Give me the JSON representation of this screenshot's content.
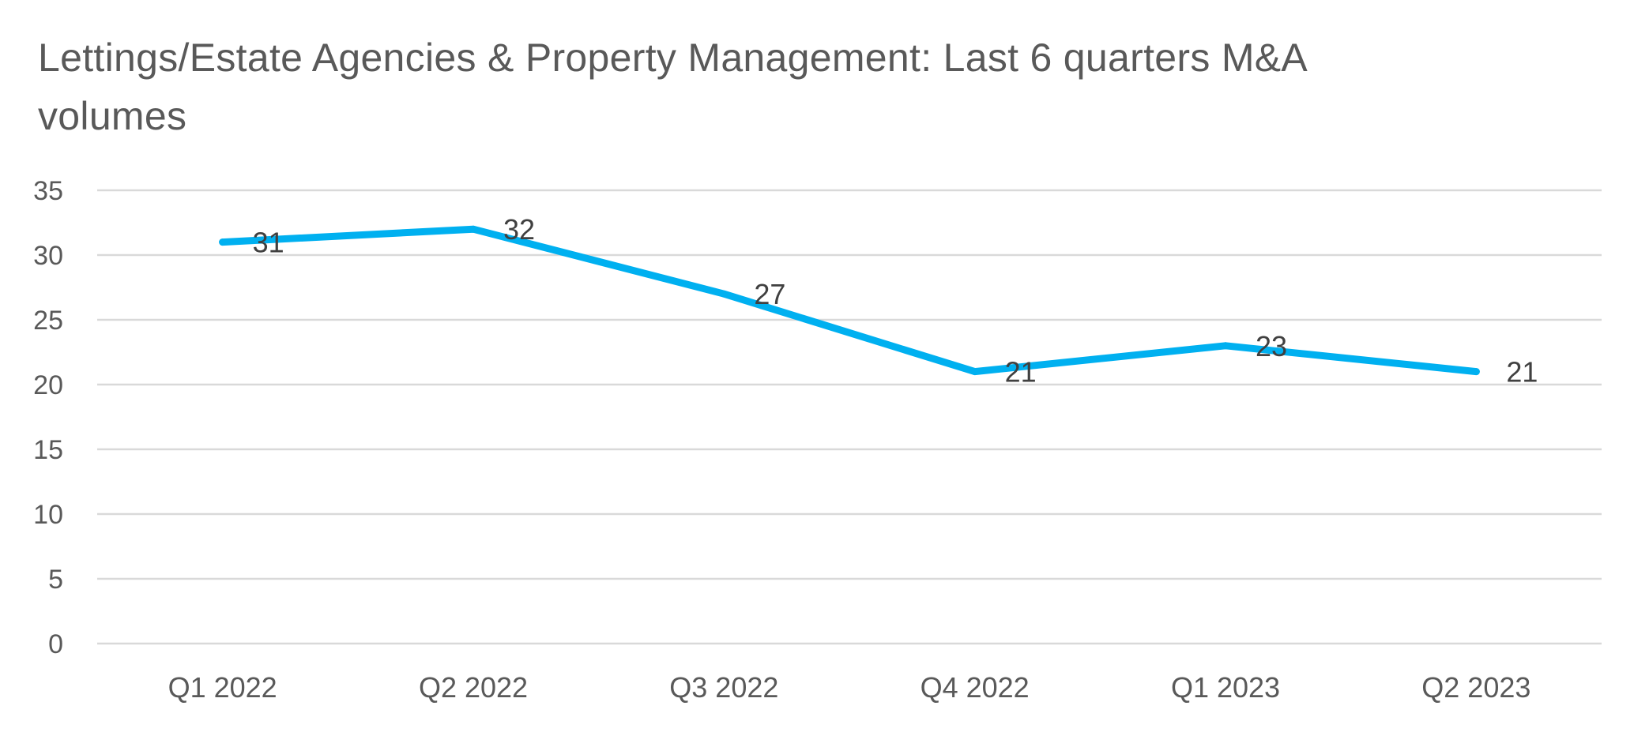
{
  "colors": {
    "series": "#00b0f0",
    "grid": "#d9d9d9",
    "text": "#595959"
  },
  "chart_data": {
    "type": "line",
    "title": "Lettings/Estate Agencies & Property Management: Last 6 quarters M&A volumes",
    "xlabel": "",
    "ylabel": "",
    "categories": [
      "Q1 2022",
      "Q2 2022",
      "Q3 2022",
      "Q4 2022",
      "Q1 2023",
      "Q2 2023"
    ],
    "series": [
      {
        "values": [
          31,
          32,
          27,
          21,
          23,
          21
        ]
      }
    ],
    "ylim": [
      0,
      35
    ],
    "yticks": [
      0,
      5,
      10,
      15,
      20,
      25,
      30,
      35
    ],
    "grid": true,
    "data_labels": true,
    "legend": "none"
  }
}
